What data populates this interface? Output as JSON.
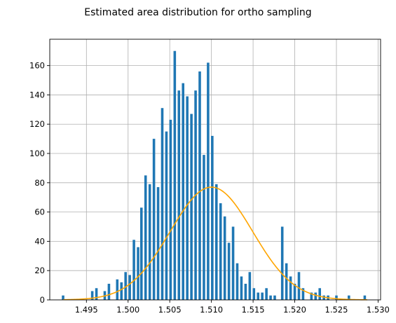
{
  "chart_data": {
    "type": "bar",
    "title": "Estimated area distribution for ortho sampling",
    "xlabel": "",
    "ylabel": "",
    "xlim": [
      1.4906,
      1.5303
    ],
    "ylim": [
      0,
      178
    ],
    "grid": true,
    "bar_color": "#1f77b4",
    "curve_color": "#ffa500",
    "bin_width": 0.0005,
    "bar_fill_fraction": 0.6,
    "xticks": [
      1.495,
      1.5,
      1.505,
      1.51,
      1.515,
      1.52,
      1.525,
      1.53
    ],
    "xtick_labels": [
      "1.495",
      "1.500",
      "1.505",
      "1.510",
      "1.515",
      "1.520",
      "1.525",
      "1.530"
    ],
    "yticks": [
      0,
      20,
      40,
      60,
      80,
      100,
      120,
      140,
      160
    ],
    "ytick_labels": [
      "0",
      "20",
      "40",
      "60",
      "80",
      "100",
      "120",
      "140",
      "160"
    ],
    "bars": {
      "x": [
        1.4922,
        1.4957,
        1.4962,
        1.4972,
        1.4977,
        1.4987,
        1.4992,
        1.4997,
        1.5002,
        1.5007,
        1.5012,
        1.5016,
        1.5021,
        1.5026,
        1.5031,
        1.5036,
        1.5041,
        1.5046,
        1.5051,
        1.5056,
        1.5061,
        1.5066,
        1.5071,
        1.5076,
        1.5081,
        1.5086,
        1.5091,
        1.5096,
        1.5101,
        1.5106,
        1.5111,
        1.5116,
        1.5121,
        1.5126,
        1.5131,
        1.5136,
        1.5141,
        1.5146,
        1.5151,
        1.5156,
        1.5161,
        1.5166,
        1.5171,
        1.5176,
        1.5185,
        1.519,
        1.5195,
        1.52,
        1.5205,
        1.521,
        1.522,
        1.5225,
        1.523,
        1.5235,
        1.524,
        1.525,
        1.5265,
        1.5284
      ],
      "y": [
        3,
        6,
        8,
        6,
        11,
        14,
        12,
        19,
        17,
        41,
        36,
        63,
        85,
        79,
        110,
        77,
        131,
        115,
        123,
        170,
        143,
        148,
        139,
        127,
        143,
        156,
        99,
        162,
        112,
        79,
        66,
        57,
        39,
        50,
        25,
        16,
        11,
        19,
        8,
        5,
        5,
        8,
        3,
        3,
        50,
        25,
        16,
        11,
        19,
        8,
        5,
        5,
        8,
        3,
        3,
        3,
        3,
        3
      ]
    },
    "curve": {
      "name": "",
      "mean": 1.51,
      "sd": 0.00495,
      "peak": 77
    }
  },
  "figure": {
    "title": "Estimated area distribution for ortho sampling"
  }
}
